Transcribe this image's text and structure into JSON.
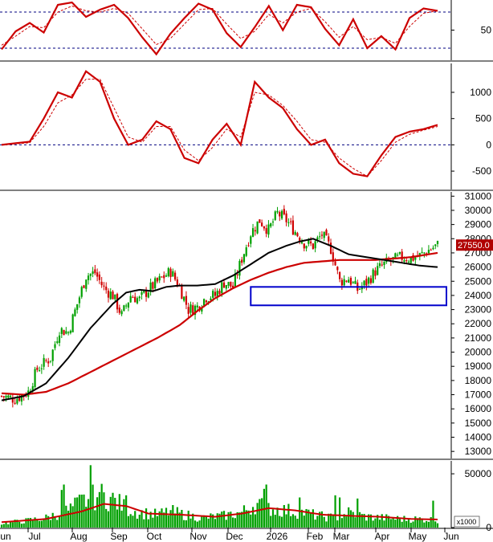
{
  "colors": {
    "up": "#00a000",
    "down": "#d00000",
    "ma_long": "#cc0000",
    "ma_short": "#000000",
    "grid": "#000080",
    "box": "#0000cc",
    "last_price_bg": "#b00000"
  },
  "chart_data": [
    {
      "type": "line",
      "panel": "oscillator-top",
      "y_tick_labels": [
        "50"
      ],
      "guide_levels": [
        80,
        20
      ],
      "ylim": [
        0,
        100
      ],
      "x": [
        0,
        8,
        16,
        24,
        32,
        40,
        48,
        56,
        64,
        72,
        80,
        88,
        96,
        104,
        112,
        120,
        128,
        136,
        144,
        152,
        160,
        168,
        176,
        184,
        192,
        200,
        208,
        216,
        224,
        232,
        240,
        248
      ],
      "series": [
        {
          "values": [
            18,
            48,
            62,
            46,
            92,
            96,
            72,
            84,
            92,
            70,
            38,
            10,
            44,
            70,
            94,
            84,
            45,
            22,
            55,
            90,
            50,
            92,
            88,
            52,
            25,
            68,
            20,
            40,
            18,
            70,
            86,
            82
          ]
        },
        {
          "values": [
            25,
            40,
            56,
            54,
            80,
            90,
            82,
            80,
            86,
            78,
            52,
            26,
            36,
            60,
            84,
            86,
            60,
            36,
            48,
            76,
            62,
            80,
            86,
            64,
            38,
            56,
            34,
            38,
            28,
            56,
            78,
            82
          ]
        }
      ]
    },
    {
      "type": "line",
      "panel": "oscillator-middle",
      "y_tick_labels": [
        "1000",
        "500",
        "0",
        "-500"
      ],
      "guide_levels": [
        0
      ],
      "ylim": [
        -850,
        1550
      ],
      "x": [
        0,
        8,
        16,
        24,
        32,
        40,
        48,
        56,
        64,
        72,
        80,
        88,
        96,
        104,
        112,
        120,
        128,
        136,
        144,
        152,
        160,
        168,
        176,
        184,
        192,
        200,
        208,
        216,
        224,
        232,
        240,
        248
      ],
      "series": [
        {
          "values": [
            0,
            30,
            60,
            500,
            1000,
            900,
            1400,
            1200,
            500,
            0,
            100,
            450,
            300,
            -250,
            -350,
            100,
            400,
            0,
            1200,
            900,
            700,
            300,
            0,
            100,
            -350,
            -550,
            -600,
            -200,
            150,
            250,
            300,
            380
          ]
        },
        {
          "values": [
            0,
            20,
            40,
            350,
            800,
            950,
            1250,
            1250,
            700,
            150,
            50,
            350,
            350,
            -100,
            -300,
            -50,
            300,
            150,
            1000,
            950,
            750,
            450,
            100,
            50,
            -250,
            -450,
            -600,
            -300,
            50,
            200,
            280,
            350
          ]
        }
      ]
    },
    {
      "type": "candlestick",
      "panel": "price",
      "y_tick_labels": [
        "31000",
        "30000",
        "29000",
        "28000",
        "27000",
        "26000",
        "25000",
        "24000",
        "23000",
        "22000",
        "21000",
        "20000",
        "19000",
        "18000",
        "17000",
        "16000",
        "15000",
        "14000",
        "13000"
      ],
      "ylim": [
        12500,
        31300
      ],
      "last_price_label": "27550.0",
      "close_anchors": [
        [
          0,
          16900
        ],
        [
          6,
          16700
        ],
        [
          12,
          17200
        ],
        [
          16,
          18800
        ],
        [
          22,
          19600
        ],
        [
          26,
          21600
        ],
        [
          30,
          21400
        ],
        [
          34,
          23400
        ],
        [
          38,
          25400
        ],
        [
          42,
          25600
        ],
        [
          46,
          24500
        ],
        [
          50,
          24000
        ],
        [
          54,
          22600
        ],
        [
          58,
          24000
        ],
        [
          62,
          23700
        ],
        [
          66,
          24400
        ],
        [
          72,
          25200
        ],
        [
          76,
          25700
        ],
        [
          80,
          24600
        ],
        [
          84,
          23000
        ],
        [
          88,
          23200
        ],
        [
          92,
          23900
        ],
        [
          96,
          24000
        ],
        [
          100,
          24900
        ],
        [
          104,
          24600
        ],
        [
          108,
          26600
        ],
        [
          112,
          28400
        ],
        [
          116,
          29300
        ],
        [
          120,
          28600
        ],
        [
          124,
          29800
        ],
        [
          128,
          29300
        ],
        [
          132,
          28500
        ],
        [
          136,
          27700
        ],
        [
          140,
          27500
        ],
        [
          144,
          28300
        ],
        [
          148,
          27300
        ],
        [
          152,
          25000
        ],
        [
          156,
          25200
        ],
        [
          160,
          24400
        ],
        [
          164,
          24900
        ],
        [
          168,
          25700
        ],
        [
          172,
          26200
        ],
        [
          176,
          26500
        ],
        [
          180,
          26700
        ],
        [
          184,
          26600
        ],
        [
          188,
          26800
        ],
        [
          192,
          27200
        ],
        [
          196,
          27550
        ]
      ],
      "ma_short": [
        [
          0,
          16600
        ],
        [
          10,
          16900
        ],
        [
          20,
          17800
        ],
        [
          30,
          19600
        ],
        [
          40,
          21700
        ],
        [
          50,
          23400
        ],
        [
          56,
          24200
        ],
        [
          62,
          24400
        ],
        [
          68,
          24300
        ],
        [
          74,
          24600
        ],
        [
          80,
          24700
        ],
        [
          88,
          24700
        ],
        [
          96,
          24800
        ],
        [
          104,
          25400
        ],
        [
          112,
          26200
        ],
        [
          120,
          27000
        ],
        [
          128,
          27500
        ],
        [
          134,
          27800
        ],
        [
          140,
          28000
        ],
        [
          148,
          27500
        ],
        [
          156,
          26900
        ],
        [
          164,
          26700
        ],
        [
          172,
          26500
        ],
        [
          180,
          26300
        ],
        [
          188,
          26100
        ],
        [
          196,
          26000
        ]
      ],
      "ma_long": [
        [
          0,
          17100
        ],
        [
          10,
          17000
        ],
        [
          20,
          17200
        ],
        [
          30,
          17800
        ],
        [
          40,
          18600
        ],
        [
          50,
          19400
        ],
        [
          60,
          20200
        ],
        [
          70,
          21000
        ],
        [
          80,
          21900
        ],
        [
          88,
          22900
        ],
        [
          96,
          23800
        ],
        [
          104,
          24500
        ],
        [
          112,
          25100
        ],
        [
          120,
          25600
        ],
        [
          128,
          26000
        ],
        [
          136,
          26300
        ],
        [
          144,
          26400
        ],
        [
          152,
          26500
        ],
        [
          160,
          26500
        ],
        [
          168,
          26500
        ],
        [
          176,
          26600
        ],
        [
          184,
          26700
        ],
        [
          192,
          26900
        ],
        [
          196,
          27000
        ]
      ],
      "zone": {
        "from": 23300,
        "to": 24600,
        "x_start": 112,
        "x_end": 208
      }
    },
    {
      "type": "bar",
      "panel": "volume",
      "y_tick_labels": [
        "50000",
        "0"
      ],
      "unit_label": "x1000",
      "ylim": [
        0,
        62000
      ],
      "volume_anchors": [
        [
          0,
          4000
        ],
        [
          10,
          6000
        ],
        [
          20,
          9000
        ],
        [
          30,
          16000
        ],
        [
          36,
          24000
        ],
        [
          44,
          30000
        ],
        [
          50,
          26000
        ],
        [
          56,
          18000
        ],
        [
          62,
          14000
        ],
        [
          70,
          12000
        ],
        [
          76,
          15000
        ],
        [
          82,
          12000
        ],
        [
          90,
          9000
        ],
        [
          100,
          11000
        ],
        [
          108,
          14000
        ],
        [
          114,
          22000
        ],
        [
          120,
          18000
        ],
        [
          128,
          16000
        ],
        [
          136,
          14000
        ],
        [
          142,
          11000
        ],
        [
          150,
          9000
        ],
        [
          156,
          14000
        ],
        [
          164,
          10000
        ],
        [
          172,
          9000
        ],
        [
          180,
          8000
        ],
        [
          188,
          8000
        ],
        [
          196,
          7000
        ]
      ],
      "spikes": [
        [
          27,
          35000
        ],
        [
          28,
          40000
        ],
        [
          40,
          58000
        ],
        [
          44,
          33000
        ],
        [
          56,
          30000
        ],
        [
          118,
          36000
        ],
        [
          119,
          40000
        ],
        [
          134,
          28000
        ],
        [
          150,
          30000
        ],
        [
          152,
          28000
        ],
        [
          160,
          27000
        ],
        [
          194,
          25000
        ]
      ],
      "ma": [
        [
          0,
          5000
        ],
        [
          20,
          8000
        ],
        [
          36,
          15000
        ],
        [
          46,
          22000
        ],
        [
          56,
          20000
        ],
        [
          66,
          13000
        ],
        [
          80,
          12000
        ],
        [
          96,
          10000
        ],
        [
          108,
          13000
        ],
        [
          120,
          18000
        ],
        [
          132,
          16000
        ],
        [
          144,
          12000
        ],
        [
          156,
          11000
        ],
        [
          170,
          10000
        ],
        [
          184,
          8000
        ],
        [
          196,
          7500
        ]
      ]
    }
  ],
  "x_axis": {
    "labels": [
      "Jun",
      "Jul",
      "Aug",
      "Sep",
      "Oct",
      "Nov",
      "Dec",
      "2026",
      "Feb",
      "Mar",
      "Apr",
      "May",
      "Jun"
    ]
  }
}
